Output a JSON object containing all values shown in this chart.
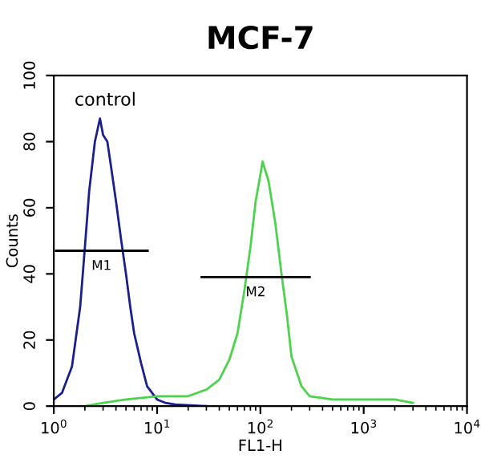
{
  "chart_data": {
    "type": "line",
    "title": "MCF-7",
    "xlabel": "FL1-H",
    "ylabel": "Counts",
    "log": "x",
    "xlim": [
      1,
      10000
    ],
    "ylim": [
      0,
      100
    ],
    "xticks": [
      {
        "value": 1,
        "label": "10$^{0}$"
      },
      {
        "value": 10,
        "label": "10$^{1}$"
      },
      {
        "value": 100,
        "label": "10$^{2}$"
      },
      {
        "value": 1000,
        "label": "10$^{3}$"
      },
      {
        "value": 10000,
        "label": "10$^{4}$"
      }
    ],
    "yticks": [
      0,
      20,
      40,
      60,
      80,
      100
    ],
    "grid": false,
    "annotations": [
      "control",
      {
        "text": "M1",
        "x": 2.9,
        "y": 47
      },
      {
        "text": "M2",
        "x": 90,
        "y": 39
      }
    ],
    "series": [
      {
        "color": "#1a1f8c",
        "x": [
          1,
          1.2,
          1.5,
          1.8,
          2,
          2.2,
          2.5,
          2.8,
          3,
          3.3,
          3.6,
          4,
          4.5,
          5,
          5.5,
          6,
          7,
          8,
          10,
          12,
          15,
          30
        ],
        "values": [
          2,
          4,
          12,
          30,
          48,
          65,
          80,
          87,
          82,
          80,
          72,
          62,
          50,
          40,
          30,
          22,
          13,
          6,
          2,
          1,
          0.5,
          0
        ]
      },
      {
        "color": "#4cd24c",
        "x": [
          2,
          3,
          5,
          10,
          20,
          30,
          40,
          50,
          60,
          70,
          80,
          90,
          100,
          105,
          120,
          140,
          160,
          180,
          200,
          250,
          300,
          500,
          1000,
          2000,
          3000
        ],
        "values": [
          0,
          1,
          2,
          3,
          3,
          5,
          8,
          14,
          22,
          35,
          48,
          62,
          70,
          74,
          68,
          55,
          40,
          28,
          15,
          6,
          3,
          2,
          2,
          2,
          1
        ]
      },
      {
        "color": "#000000",
        "x": [
          1.05,
          2.9,
          8.1
        ],
        "values": [
          47,
          47,
          47
        ]
      },
      {
        "color": "#000000",
        "x": [
          27,
          90,
          300
        ],
        "values": [
          39,
          39,
          39
        ]
      }
    ]
  }
}
